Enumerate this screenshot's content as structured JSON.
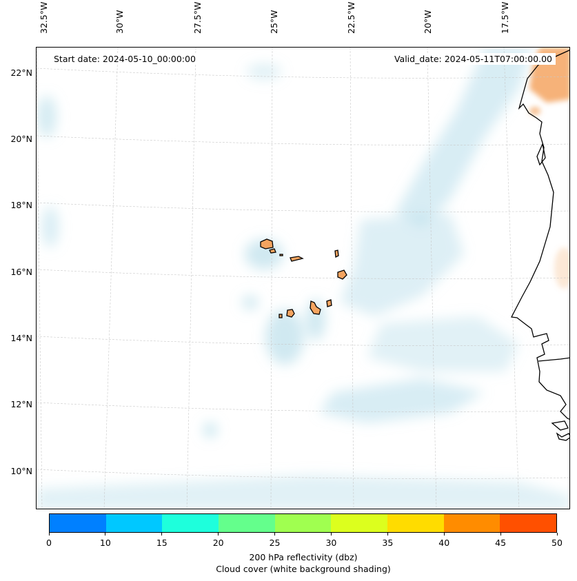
{
  "map": {
    "start_date": "Start date: 2024-05-10_00:00:00",
    "valid_date": "Valid_date: 2024-05-11T07:00:00.00",
    "lat_labels": [
      "22°N",
      "20°N",
      "18°N",
      "16°N",
      "14°N",
      "12°N",
      "10°N"
    ],
    "lon_labels": [
      "32.5°W",
      "30°W",
      "27.5°W",
      "25°W",
      "22.5°W",
      "20°W",
      "17.5°W"
    ],
    "region": "Cape Verde Islands and West African coast"
  },
  "colorbar": {
    "ticks": [
      "0",
      "10",
      "15",
      "20",
      "25",
      "30",
      "35",
      "40",
      "45",
      "50"
    ],
    "colors": [
      "#0080ff",
      "#00c8ff",
      "#1effdc",
      "#64ff8c",
      "#a0ff50",
      "#dcff1e",
      "#ffdc00",
      "#ff8c00",
      "#ff5000"
    ],
    "label_line1": "200 hPa reflectivity (dbz)",
    "label_line2": "Cloud cover (white background shading)"
  },
  "styles": {
    "cloud_color": "#a9d7e6",
    "land_color": "#f4a460",
    "coast_color": "#000000",
    "grid_color": "#c8c8c8"
  }
}
